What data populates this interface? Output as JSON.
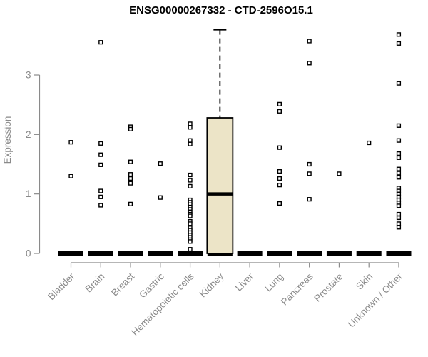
{
  "chart_data": {
    "type": "boxplot",
    "title": "ENSG00000267332 - CTD-2596O15.1",
    "ylabel": "Expression",
    "yticks": [
      0,
      1,
      2,
      3
    ],
    "ylim": [
      0,
      3.9
    ],
    "grid": false,
    "legend": false,
    "categories": [
      "Bladder",
      "Brain",
      "Breast",
      "Gastric",
      "Hematopoietic cells",
      "Kidney",
      "Liver",
      "Lung",
      "Pancreas",
      "Prostate",
      "Skin",
      "Unknown / Other"
    ],
    "series": [
      {
        "name": "Bladder",
        "zero_bar": true,
        "points": [
          1.87,
          1.3
        ]
      },
      {
        "name": "Brain",
        "zero_bar": true,
        "points": [
          3.55,
          1.85,
          1.66,
          1.49,
          1.05,
          0.95,
          0.81
        ]
      },
      {
        "name": "Breast",
        "zero_bar": true,
        "points": [
          2.13,
          2.09,
          1.54,
          1.33,
          1.26,
          1.18,
          0.83
        ]
      },
      {
        "name": "Gastric",
        "zero_bar": true,
        "points": [
          1.51,
          0.94
        ]
      },
      {
        "name": "Hematopoietic cells",
        "zero_bar": true,
        "points": [
          2.18,
          2.12,
          1.9,
          1.84,
          1.32,
          1.23,
          1.13,
          0.9,
          0.86,
          0.82,
          0.78,
          0.74,
          0.7,
          0.66,
          0.63,
          0.54,
          0.5,
          0.43,
          0.39,
          0.35,
          0.31,
          0.27,
          0.23,
          0.2,
          0.07
        ]
      },
      {
        "name": "Kidney",
        "zero_bar": true,
        "points": []
      },
      {
        "name": "Liver",
        "zero_bar": true,
        "points": []
      },
      {
        "name": "Lung",
        "zero_bar": true,
        "points": [
          2.51,
          2.39,
          1.78,
          1.38,
          1.26,
          1.15,
          0.84
        ]
      },
      {
        "name": "Pancreas",
        "zero_bar": true,
        "points": [
          3.57,
          3.2,
          1.5,
          1.34,
          0.91
        ]
      },
      {
        "name": "Prostate",
        "zero_bar": true,
        "points": [
          1.34
        ]
      },
      {
        "name": "Skin",
        "zero_bar": true,
        "points": [
          1.86
        ]
      },
      {
        "name": "Unknown / Other",
        "zero_bar": true,
        "points": [
          3.68,
          3.53,
          2.86,
          2.15,
          1.9,
          1.68,
          1.61,
          1.42,
          1.35,
          1.28,
          1.1,
          1.05,
          1.0,
          0.95,
          0.9,
          0.85,
          0.8,
          0.66,
          0.6,
          0.5,
          0.44
        ]
      }
    ],
    "boxes": [
      {
        "category": "Kidney",
        "q1": 0.0,
        "median": 1.0,
        "q3": 2.28,
        "whisker_low": 0.0,
        "whisker_high": 3.76
      }
    ],
    "colors": {
      "title": "#000000",
      "label": "#8a8a8a",
      "axis": "#8a8a8a",
      "box_fill": "#ece4c7",
      "box_stroke": "#000000",
      "point_fill": "#ffffff",
      "point_stroke": "#000000",
      "zero_dash": "#000000",
      "background": "#ffffff"
    }
  }
}
